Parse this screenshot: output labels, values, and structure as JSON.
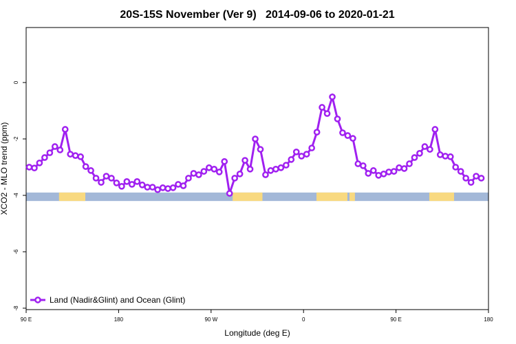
{
  "chart_data": {
    "type": "line",
    "title": "20S-15S November (Ver 9)   2014-09-06 to 2020-01-21",
    "x_label": "Longitude (deg E)",
    "y_label": "XCO2 - MLO trend (ppm)",
    "x": [
      93,
      98,
      103,
      108,
      113,
      118,
      123,
      128,
      133,
      138,
      143,
      148,
      153,
      158,
      163,
      168,
      173,
      178,
      183,
      188,
      193,
      198,
      203,
      208,
      213,
      218,
      223,
      228,
      233,
      238,
      243,
      248,
      253,
      258,
      263,
      268,
      273,
      278,
      283,
      288,
      293,
      298,
      303,
      308,
      313,
      318,
      323,
      328,
      333,
      338,
      343,
      348,
      353,
      358,
      363,
      368,
      373,
      378,
      383,
      388,
      393,
      398,
      403,
      408,
      413,
      418,
      423,
      428,
      433,
      438,
      443,
      448,
      453,
      458,
      463,
      468,
      473,
      478,
      483,
      488,
      493,
      498,
      503,
      508,
      513,
      518,
      523,
      528,
      533
    ],
    "series": [
      {
        "name": "Land (Nadir&Glint) and Ocean (Glint)",
        "color": "#a020f0",
        "values": [
          -3.0,
          -3.03,
          -2.85,
          -2.66,
          -2.49,
          -2.27,
          -2.39,
          -1.66,
          -2.54,
          -2.59,
          -2.63,
          -2.98,
          -3.12,
          -3.39,
          -3.54,
          -3.32,
          -3.39,
          -3.56,
          -3.68,
          -3.51,
          -3.61,
          -3.51,
          -3.63,
          -3.71,
          -3.71,
          -3.8,
          -3.73,
          -3.76,
          -3.73,
          -3.61,
          -3.66,
          -3.39,
          -3.22,
          -3.27,
          -3.15,
          -3.02,
          -3.07,
          -3.17,
          -2.8,
          -3.93,
          -3.39,
          -3.24,
          -2.76,
          -3.07,
          -2.0,
          -2.37,
          -3.27,
          -3.12,
          -3.07,
          -3.02,
          -2.93,
          -2.73,
          -2.46,
          -2.61,
          -2.54,
          -2.32,
          -1.76,
          -0.88,
          -1.1,
          -0.51,
          -1.29,
          -1.78,
          -1.88,
          -1.98,
          -2.88,
          -2.95,
          -3.22,
          -3.12,
          -3.29,
          -3.24,
          -3.17,
          -3.15,
          -3.02,
          -3.05,
          -2.88,
          -2.66,
          -2.51,
          -2.27,
          -2.37,
          -1.66,
          -2.56,
          -2.61,
          -2.63,
          -3.0,
          -3.15,
          -3.39,
          -3.54,
          -3.32,
          -3.39
        ]
      }
    ],
    "strip": {
      "ylim": [
        -4.2,
        -3.9
      ],
      "ocean_color": "#a3b8d8",
      "land_color": "#f8d980",
      "land_spans": [
        [
          122,
          147.6
        ],
        [
          291,
          320
        ],
        [
          372.6,
          402.7
        ],
        [
          404.7,
          410
        ],
        [
          482.4,
          506.5
        ]
      ]
    },
    "xlim": [
      90,
      540
    ],
    "ylim": [
      -8.05,
      1.95
    ],
    "xticks": [
      {
        "value": 90,
        "label": "90 E"
      },
      180,
      {
        "value": 270,
        "label": "90 W"
      },
      {
        "value": 360,
        "label": "0"
      },
      {
        "value": 450,
        "label": "90 E"
      },
      {
        "value": 540,
        "label": "180"
      }
    ],
    "yticks": [
      0,
      -2,
      -4,
      -6,
      -8
    ],
    "legend": "bottom-left"
  }
}
